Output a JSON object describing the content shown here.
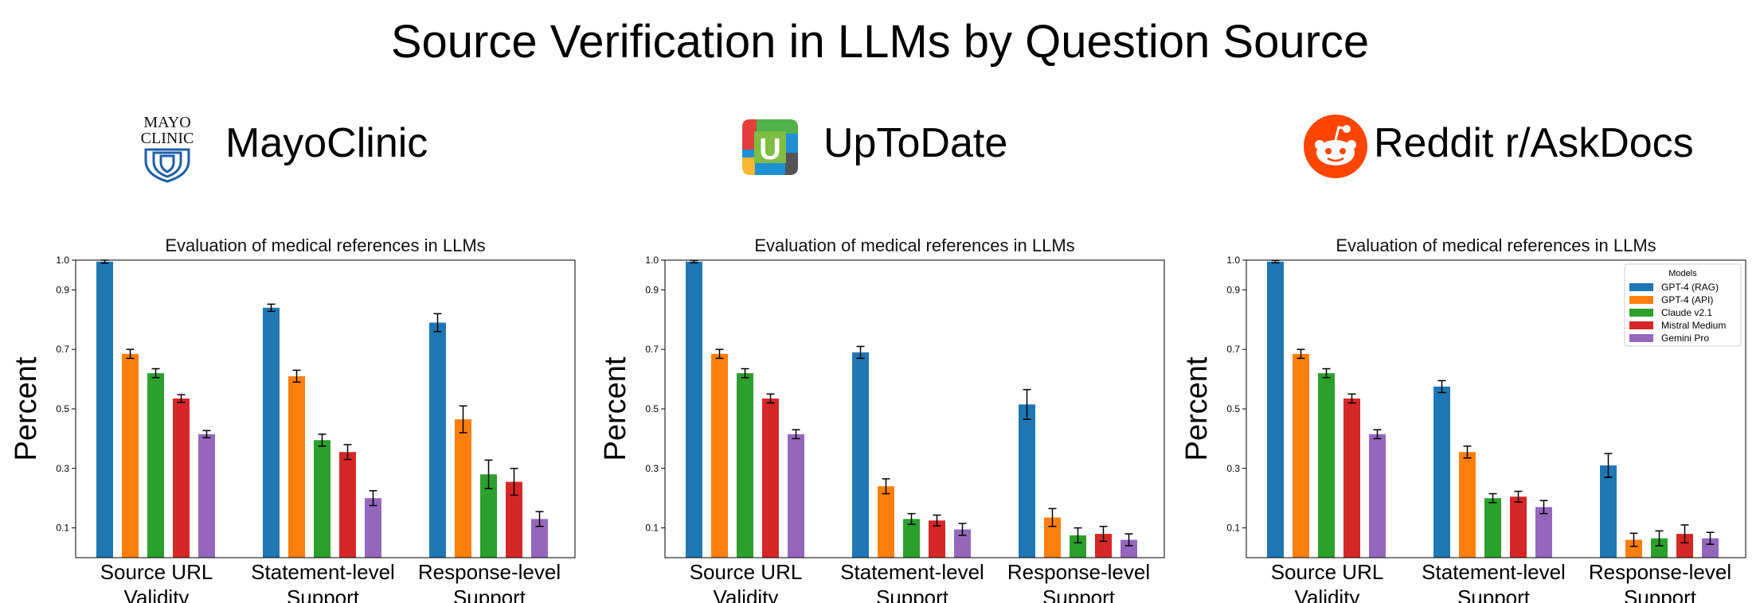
{
  "page": {
    "title": "Source Verification in LLMs by Question Source"
  },
  "panels": [
    {
      "source_name": "MayoClinic",
      "logo": "mayo-clinic-logo",
      "logo_text": [
        "MAYO",
        "CLINIC"
      ]
    },
    {
      "source_name": "UpToDate",
      "logo": "uptodate-logo",
      "logo_text": [
        "U"
      ]
    },
    {
      "source_name": "Reddit r/AskDocs",
      "logo": "reddit-logo",
      "logo_text": []
    }
  ],
  "colors": {
    "GPT-4 (RAG)": "#1f77b4",
    "GPT-4 (API)": "#ff7f0e",
    "Claude v2.1": "#2ca02c",
    "Mistral Medium": "#d62728",
    "Gemini Pro": "#9467bd"
  },
  "chart_data": [
    {
      "type": "bar",
      "title": "Evaluation of medical references in LLMs",
      "ylabel": "Percent",
      "xlabel": "",
      "categories": [
        "Source URL\nValidity",
        "Statement-level\nSupport",
        "Response-level\nSupport"
      ],
      "ylim": [
        0,
        1.0
      ],
      "yticks": [
        0.1,
        0.3,
        0.5,
        0.7,
        0.9,
        1.0
      ],
      "series": [
        {
          "name": "GPT-4 (RAG)",
          "values": [
            0.995,
            0.84,
            0.79
          ],
          "errors": [
            0.005,
            0.012,
            0.03
          ]
        },
        {
          "name": "GPT-4 (API)",
          "values": [
            0.685,
            0.61,
            0.465
          ],
          "errors": [
            0.015,
            0.02,
            0.045
          ]
        },
        {
          "name": "Claude v2.1",
          "values": [
            0.62,
            0.395,
            0.28
          ],
          "errors": [
            0.015,
            0.02,
            0.048
          ]
        },
        {
          "name": "Mistral Medium",
          "values": [
            0.535,
            0.355,
            0.255
          ],
          "errors": [
            0.013,
            0.025,
            0.045
          ]
        },
        {
          "name": "Gemini Pro",
          "values": [
            0.415,
            0.2,
            0.13
          ],
          "errors": [
            0.012,
            0.025,
            0.025
          ]
        }
      ],
      "legend": null
    },
    {
      "type": "bar",
      "title": "Evaluation of medical references in LLMs",
      "ylabel": "Percent",
      "xlabel": "",
      "categories": [
        "Source URL\nValidity",
        "Statement-level\nSupport",
        "Response-level\nSupport"
      ],
      "ylim": [
        0,
        1.0
      ],
      "yticks": [
        0.1,
        0.3,
        0.5,
        0.7,
        0.9,
        1.0
      ],
      "series": [
        {
          "name": "GPT-4 (RAG)",
          "values": [
            0.995,
            0.69,
            0.515
          ],
          "errors": [
            0.004,
            0.02,
            0.05
          ]
        },
        {
          "name": "GPT-4 (API)",
          "values": [
            0.685,
            0.24,
            0.135
          ],
          "errors": [
            0.015,
            0.025,
            0.03
          ]
        },
        {
          "name": "Claude v2.1",
          "values": [
            0.62,
            0.13,
            0.075
          ],
          "errors": [
            0.015,
            0.018,
            0.025
          ]
        },
        {
          "name": "Mistral Medium",
          "values": [
            0.535,
            0.125,
            0.08
          ],
          "errors": [
            0.015,
            0.018,
            0.025
          ]
        },
        {
          "name": "Gemini Pro",
          "values": [
            0.415,
            0.095,
            0.06
          ],
          "errors": [
            0.015,
            0.02,
            0.02
          ]
        }
      ],
      "legend": null
    },
    {
      "type": "bar",
      "title": "Evaluation of medical references in LLMs",
      "ylabel": "Percent",
      "xlabel": "",
      "categories": [
        "Source URL\nValidity",
        "Statement-level\nSupport",
        "Response-level\nSupport"
      ],
      "ylim": [
        0,
        1.0
      ],
      "yticks": [
        0.1,
        0.3,
        0.5,
        0.7,
        0.9,
        1.0
      ],
      "series": [
        {
          "name": "GPT-4 (RAG)",
          "values": [
            0.995,
            0.575,
            0.31
          ],
          "errors": [
            0.004,
            0.02,
            0.04
          ]
        },
        {
          "name": "GPT-4 (API)",
          "values": [
            0.685,
            0.355,
            0.06
          ],
          "errors": [
            0.015,
            0.02,
            0.022
          ]
        },
        {
          "name": "Claude v2.1",
          "values": [
            0.62,
            0.2,
            0.065
          ],
          "errors": [
            0.015,
            0.015,
            0.025
          ]
        },
        {
          "name": "Mistral Medium",
          "values": [
            0.535,
            0.205,
            0.08
          ],
          "errors": [
            0.015,
            0.018,
            0.03
          ]
        },
        {
          "name": "Gemini Pro",
          "values": [
            0.415,
            0.17,
            0.065
          ],
          "errors": [
            0.015,
            0.022,
            0.02
          ]
        }
      ],
      "legend": {
        "title": "Models",
        "position": "upper right"
      }
    }
  ]
}
